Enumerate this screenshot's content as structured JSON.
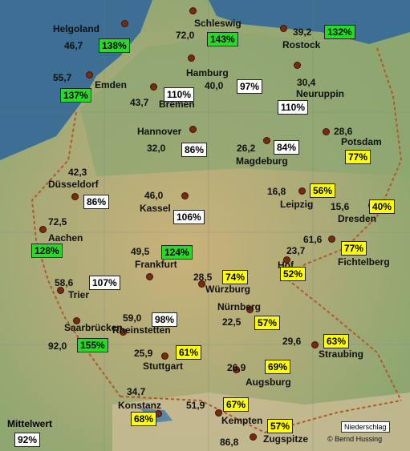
{
  "colors": {
    "above_avg_badge": "#22dd22",
    "normal_badge": "#ffffff",
    "below_avg_badge": "#ffff00",
    "sea": "#3c6f96",
    "lowland": "#8fa772",
    "upland": "#c7b078",
    "city_dot": "#7a2a10"
  },
  "stations": [
    {
      "city": "Helgoland",
      "value": "46,7",
      "percent": "138%",
      "level": "high"
    },
    {
      "city": "Schleswig",
      "value": "72,0",
      "percent": "143%",
      "level": "high"
    },
    {
      "city": "Rostock",
      "value": "39,2",
      "percent": "132%",
      "level": "high"
    },
    {
      "city": "Emden",
      "value": "55,7",
      "percent": "137%",
      "level": "high"
    },
    {
      "city": "Bremen",
      "value": "43,7",
      "percent": "110%",
      "level": "normal"
    },
    {
      "city": "Hamburg",
      "value": "40,0",
      "percent": "97%",
      "level": "normal"
    },
    {
      "city": "Neuruppin",
      "value": "30,4",
      "percent": "110%",
      "level": "normal"
    },
    {
      "city": "Hannover",
      "value": "32,0",
      "percent": "86%",
      "level": "normal"
    },
    {
      "city": "Magdeburg",
      "value": "26,2",
      "percent": "84%",
      "level": "normal"
    },
    {
      "city": "Potsdam",
      "value": "28,6",
      "percent": "77%",
      "level": "low"
    },
    {
      "city": "Düsseldorf",
      "value": "42,3",
      "percent": "86%",
      "level": "normal"
    },
    {
      "city": "Kassel",
      "value": "46,0",
      "percent": "106%",
      "level": "normal"
    },
    {
      "city": "Leipzig",
      "value": "16,8",
      "percent": "56%",
      "level": "low"
    },
    {
      "city": "Dresden",
      "value": "15,6",
      "percent": "40%",
      "level": "low"
    },
    {
      "city": "Aachen",
      "value": "72,5",
      "percent": "128%",
      "level": "high"
    },
    {
      "city": "Frankfurt",
      "value": "49,5",
      "percent": "124%",
      "level": "high"
    },
    {
      "city": "Hof",
      "value": "23,7",
      "percent": "52%",
      "level": "low"
    },
    {
      "city": "Fichtelberg",
      "value": "61,6",
      "percent": "77%",
      "level": "low"
    },
    {
      "city": "Trier",
      "value": "58,6",
      "percent": "107%",
      "level": "normal"
    },
    {
      "city": "Würzburg",
      "value": "28,5",
      "percent": "74%",
      "level": "low"
    },
    {
      "city": "Saarbrücken",
      "value": "92,0",
      "percent": "155%",
      "level": "high"
    },
    {
      "city": "Rheinstetten",
      "value": "59,0",
      "percent": "98%",
      "level": "normal"
    },
    {
      "city": "Nürnberg",
      "value": "22,5",
      "percent": "57%",
      "level": "low"
    },
    {
      "city": "Stuttgart",
      "value": "25,9",
      "percent": "61%",
      "level": "low"
    },
    {
      "city": "Augsburg",
      "value": "26,9",
      "percent": "69%",
      "level": "low"
    },
    {
      "city": "Straubing",
      "value": "29,6",
      "percent": "63%",
      "level": "low"
    },
    {
      "city": "Konstanz",
      "value": "34,7",
      "percent": "68%",
      "level": "low"
    },
    {
      "city": "Kempten",
      "value": "51,9",
      "percent": "67%",
      "level": "low"
    },
    {
      "city": "Zugspitze",
      "value": "86,8",
      "percent": "57%",
      "level": "low"
    }
  ],
  "average": {
    "label": "Mittelwert",
    "percent": "92%",
    "level": "normal"
  },
  "legend_label": "Niederschlag",
  "credit": "© Bernd Hussing"
}
